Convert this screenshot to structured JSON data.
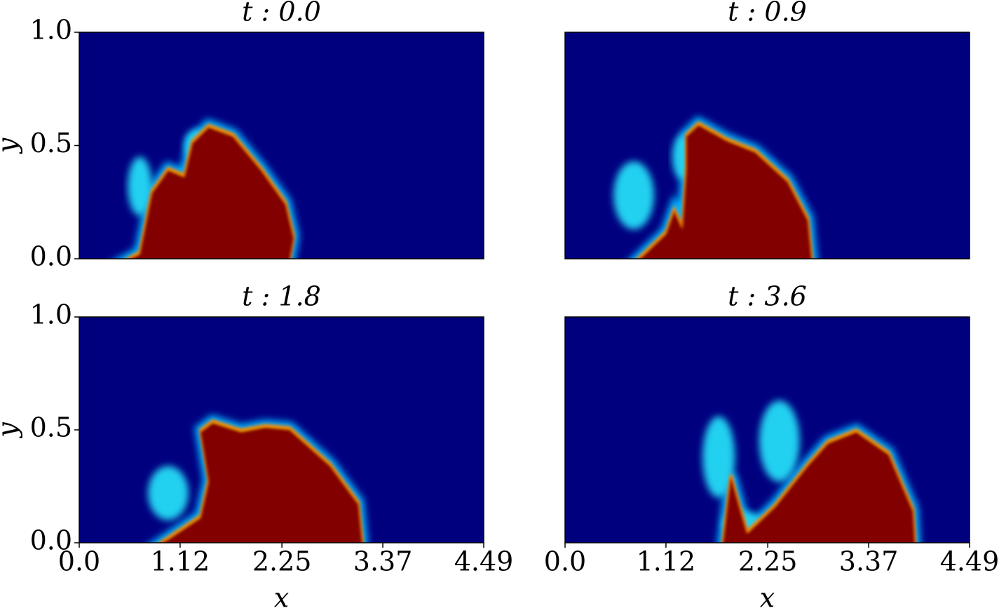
{
  "chart_data": [
    {
      "type": "heatmap",
      "title": "t : 0.0",
      "xlim": [
        0,
        4.49
      ],
      "ylim": [
        0,
        1
      ],
      "yticks": [
        {
          "value": 0,
          "label": "0.0"
        },
        0.5,
        {
          "value": 1,
          "label": "1.0"
        }
      ],
      "ylabel": "y"
    },
    {
      "type": "heatmap",
      "title": "t : 0.9",
      "xlim": [
        0,
        4.49
      ],
      "ylim": [
        0,
        1
      ]
    },
    {
      "type": "heatmap",
      "title": "t : 1.8",
      "xlim": [
        0,
        4.49
      ],
      "ylim": [
        0,
        1
      ],
      "xticks": [
        {
          "value": 0,
          "label": "0.0"
        },
        1.12,
        2.25,
        3.37,
        4.49
      ],
      "xlabel": "x",
      "yticks": [
        {
          "value": 0,
          "label": "0.0"
        },
        0.5,
        {
          "value": 1,
          "label": "1.0"
        }
      ],
      "ylabel": "y"
    },
    {
      "type": "heatmap",
      "title": "t : 3.6",
      "xlim": [
        0,
        4.49
      ],
      "ylim": [
        0,
        1
      ],
      "xticks": [
        {
          "value": 0,
          "label": "0.0"
        },
        1.12,
        2.25,
        3.37,
        4.49
      ],
      "xlabel": "x"
    }
  ]
}
